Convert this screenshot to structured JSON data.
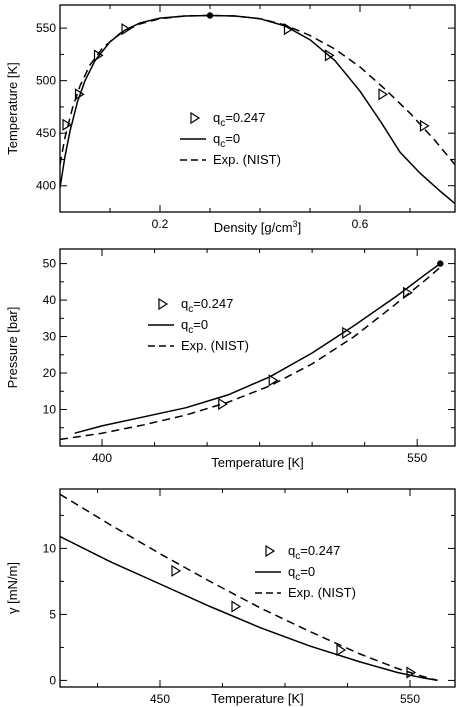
{
  "chart_data": [
    {
      "type": "line",
      "xlabel": "Density [g/cm",
      "xlabel_sup": "3",
      "xlabel_end": "]",
      "ylabel": "Temperature [K]",
      "xlim": [
        0.0,
        0.79
      ],
      "ylim": [
        375,
        572
      ],
      "xticks": [
        0.2,
        0.6
      ],
      "xminor": [
        0.1,
        0.3,
        0.4,
        0.5,
        0.7
      ],
      "yticks": [
        400,
        450,
        500,
        550
      ],
      "yminor": [
        425,
        475,
        525
      ],
      "legend_position": "center-right",
      "critical_point": [
        0.3,
        562
      ],
      "series": [
        {
          "name": "q",
          "name_sub": "c",
          "name_rest": "=0.247",
          "style": "triangles",
          "x": [
            0.012,
            0.037,
            0.075,
            0.13,
            0.455,
            0.537,
            0.644,
            0.727
          ],
          "y": [
            458,
            487,
            524,
            549,
            549,
            524,
            487,
            457
          ]
        },
        {
          "name": "q",
          "name_sub": "c",
          "name_rest": "=0",
          "style": "solid",
          "x": [
            0.0,
            0.01,
            0.02,
            0.035,
            0.05,
            0.07,
            0.1,
            0.13,
            0.16,
            0.2,
            0.25,
            0.3,
            0.35,
            0.4,
            0.45,
            0.5,
            0.55,
            0.6,
            0.64,
            0.68,
            0.72,
            0.76,
            0.79
          ],
          "y": [
            398,
            428,
            452,
            480,
            500,
            519,
            537,
            548,
            555,
            559.5,
            561.5,
            562,
            561.5,
            559,
            552,
            539,
            519,
            490,
            462,
            432,
            412,
            395,
            383
          ]
        },
        {
          "name": "Exp. (NIST)",
          "style": "dashed",
          "x": [
            0.0,
            0.01,
            0.025,
            0.04,
            0.06,
            0.085,
            0.12,
            0.16,
            0.2,
            0.25,
            0.3,
            0.35,
            0.4,
            0.45,
            0.5,
            0.55,
            0.6,
            0.65,
            0.7,
            0.75,
            0.79
          ],
          "y": [
            420,
            446,
            474,
            495,
            515,
            531,
            545,
            554,
            559,
            561.5,
            562,
            561.5,
            559,
            553,
            543,
            530,
            513,
            492,
            469,
            443,
            420
          ]
        }
      ]
    },
    {
      "type": "line",
      "xlabel": "Temperature [K]",
      "ylabel": "Pressure [bar]",
      "xlim": [
        380,
        568
      ],
      "ylim": [
        0,
        54
      ],
      "xticks": [
        400,
        550
      ],
      "xminor": [
        425,
        450,
        475,
        500,
        525
      ],
      "yticks": [
        10,
        20,
        30,
        40,
        50
      ],
      "yminor": [
        5,
        15,
        25,
        35,
        45
      ],
      "legend_position": "top-left",
      "critical_point": [
        561,
        50
      ],
      "series": [
        {
          "name": "q",
          "name_sub": "c",
          "name_rest": "=0.247",
          "style": "triangles",
          "x": [
            457,
            481,
            516,
            545
          ],
          "y": [
            11.5,
            18,
            31,
            42
          ]
        },
        {
          "name": "q",
          "name_sub": "c",
          "name_rest": "=0",
          "style": "solid",
          "x": [
            387,
            400,
            420,
            440,
            460,
            480,
            500,
            520,
            540,
            555,
            561
          ],
          "y": [
            3.5,
            5.5,
            8,
            10.5,
            14,
            19,
            25.5,
            33,
            41,
            47.5,
            50
          ]
        },
        {
          "name": "Exp. (NIST)",
          "style": "dashed",
          "x": [
            380,
            400,
            420,
            440,
            460,
            480,
            500,
            520,
            540,
            555,
            561
          ],
          "y": [
            1.8,
            3.5,
            5.8,
            8.5,
            12,
            16.5,
            22.5,
            30,
            39,
            46,
            49
          ]
        }
      ]
    },
    {
      "type": "line",
      "xlabel": "Temperature [K]",
      "ylabel": "γ [mN/m]",
      "xlim": [
        410,
        568
      ],
      "ylim": [
        -0.5,
        14.5
      ],
      "xticks": [
        450,
        550
      ],
      "xminor": [
        425,
        475,
        500,
        525
      ],
      "yticks": [
        0,
        5,
        10
      ],
      "yminor": [
        2.5,
        7.5,
        12.5
      ],
      "legend_position": "center-right",
      "series": [
        {
          "name": "q",
          "name_sub": "c",
          "name_rest": "=0.247",
          "style": "triangles",
          "x": [
            456,
            480,
            522,
            550
          ],
          "y": [
            8.3,
            5.6,
            2.3,
            0.6
          ]
        },
        {
          "name": "q",
          "name_sub": "c",
          "name_rest": "=0",
          "style": "solid",
          "x": [
            410,
            430,
            450,
            470,
            490,
            510,
            530,
            545,
            555,
            561
          ],
          "y": [
            10.9,
            9.0,
            7.3,
            5.6,
            4.0,
            2.6,
            1.4,
            0.6,
            0.2,
            0.0
          ]
        },
        {
          "name": "Exp. (NIST)",
          "style": "dashed",
          "x": [
            410,
            430,
            450,
            470,
            490,
            510,
            530,
            545,
            555,
            561
          ],
          "y": [
            14.1,
            11.8,
            9.6,
            7.5,
            5.5,
            3.7,
            2.0,
            0.9,
            0.3,
            0.0
          ]
        }
      ]
    }
  ]
}
